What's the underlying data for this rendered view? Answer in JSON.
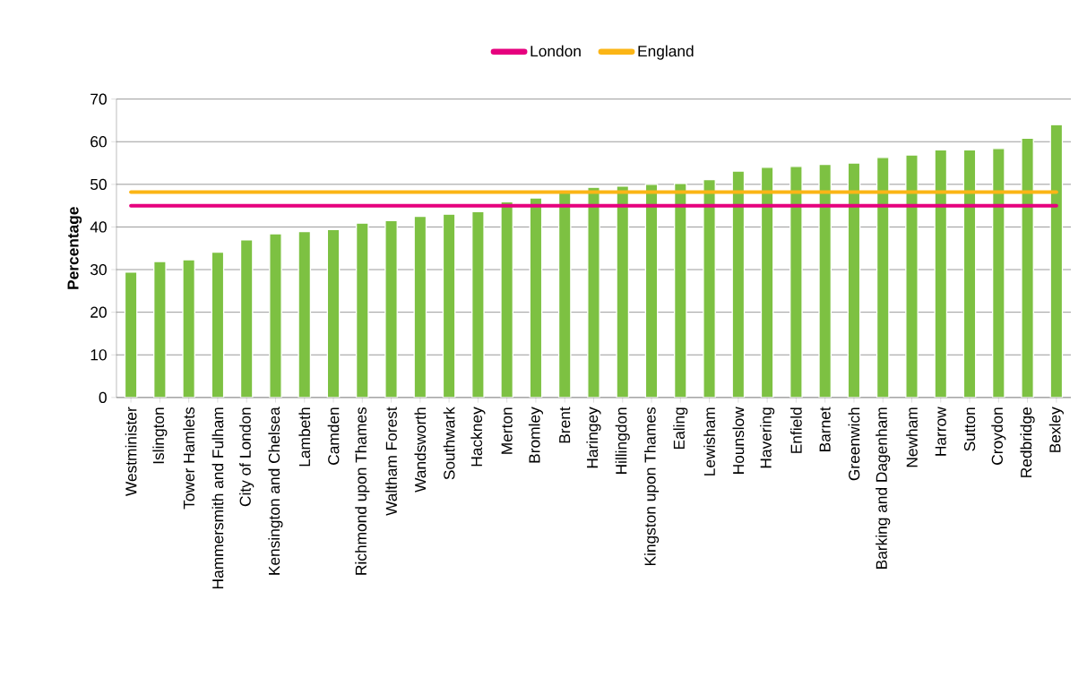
{
  "chart_data": {
    "type": "bar",
    "ylabel": "Percentage",
    "categories": [
      "Westminister",
      "Islington",
      "Tower Hamlets",
      "Hammersmith and Fulham",
      "City of London",
      "Kensington and Chelsea",
      "Lambeth",
      "Camden",
      "Richmond upon Thames",
      "Waltham Forest",
      "Wandsworth",
      "Southwark",
      "Hackney",
      "Merton",
      "Bromley",
      "Brent",
      "Haringey",
      "Hillingdon",
      "Kingston upon Thames",
      "Ealing",
      "Lewisham",
      "Hounslow",
      "Havering",
      "Enfield",
      "Barnet",
      "Greenwich",
      "Barking and Dagenham",
      "Newham",
      "Harrow",
      "Sutton",
      "Croydon",
      "Redbridge",
      "Bexley"
    ],
    "series": [
      {
        "color": "#7dc142",
        "values": [
          29.4,
          31.9,
          32.3,
          34.1,
          37,
          38.4,
          38.9,
          39.4,
          40.9,
          41.5,
          42.5,
          43,
          43.6,
          45.9,
          46.8,
          48,
          49.3,
          49.6,
          50,
          50.2,
          51.1,
          53.1,
          54,
          54.2,
          54.7,
          55,
          56.3,
          56.9,
          58.1,
          58.1,
          58.4,
          60.8,
          64
        ]
      },
      {
        "type": "line",
        "name": "London",
        "color": "#e6007e",
        "values": [
          45,
          45,
          45,
          45,
          45,
          45,
          45,
          45,
          45,
          45,
          45,
          45,
          45,
          45,
          45,
          45,
          45,
          45,
          45,
          45,
          45,
          45,
          45,
          45,
          45,
          45,
          45,
          45,
          45,
          45,
          45,
          45,
          45
        ]
      },
      {
        "type": "line",
        "name": "England",
        "color": "#fbb516",
        "values": [
          48.2,
          48.2,
          48.2,
          48.2,
          48.2,
          48.2,
          48.2,
          48.2,
          48.2,
          48.2,
          48.2,
          48.2,
          48.2,
          48.2,
          48.2,
          48.2,
          48.2,
          48.2,
          48.2,
          48.2,
          48.2,
          48.2,
          48.2,
          48.2,
          48.2,
          48.2,
          48.2,
          48.2,
          48.2,
          48.2,
          48.2,
          48.2,
          48.2
        ]
      }
    ],
    "ylim": [
      0,
      70
    ],
    "yticks": [
      0,
      10,
      20,
      30,
      40,
      50,
      60,
      70
    ],
    "grid": "y",
    "legend": "top",
    "marker": "none",
    "line_style": "solid"
  }
}
